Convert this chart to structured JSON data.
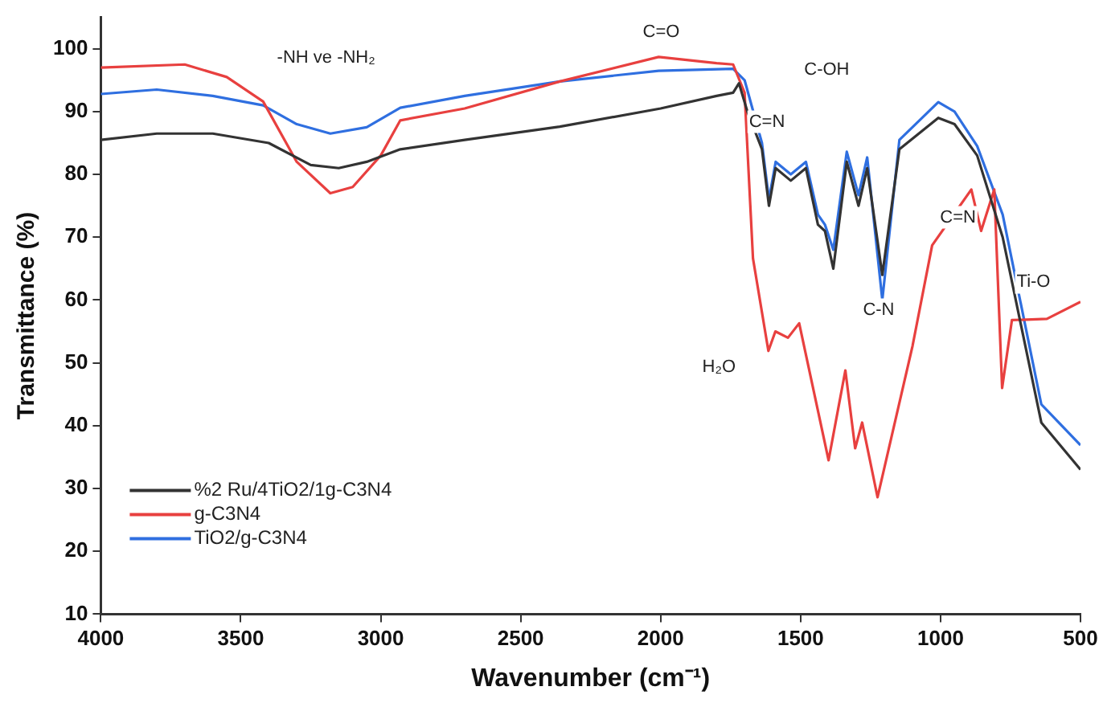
{
  "chart_data": {
    "type": "line",
    "xlabel": "Wavenumber (cm⁻¹)",
    "ylabel": "Transmittance (%)",
    "xlim": [
      4000,
      500
    ],
    "xticks": [
      4000,
      3500,
      3000,
      2500,
      2000,
      1500,
      1000,
      500
    ],
    "ylim": [
      10,
      105
    ],
    "yticks": [
      10,
      20,
      30,
      40,
      50,
      60,
      70,
      80,
      90,
      100
    ],
    "grid": false,
    "legend": "bottom left",
    "marker": "none",
    "line_style": "solid",
    "series": [
      {
        "name": "%2 Ru/4TiO2/1g-C3N4",
        "color": "#333333",
        "x": [
          4000,
          3800,
          3600,
          3400,
          3250,
          3150,
          3050,
          2930,
          2700,
          2360,
          2000,
          1800,
          1741,
          1720,
          1690,
          1638,
          1613,
          1589,
          1535,
          1481,
          1438,
          1413,
          1383,
          1335,
          1293,
          1262,
          1208,
          1147,
          1008,
          950,
          869,
          778,
          640,
          500
        ],
        "values": [
          85.5,
          86.5,
          86.5,
          85,
          81.5,
          81,
          82,
          84,
          85.5,
          87.6,
          90.5,
          92.5,
          93,
          94.5,
          90,
          84,
          75,
          81,
          79,
          81,
          72,
          71,
          65,
          82,
          75,
          81,
          64,
          84,
          89,
          88,
          83,
          70,
          40.5,
          33
        ]
      },
      {
        "name": "g-C3N4",
        "color": "#e8403f",
        "x": [
          4000,
          3700,
          3550,
          3420,
          3300,
          3180,
          3100,
          3000,
          2930,
          2700,
          2360,
          2007,
          1800,
          1741,
          1700,
          1670,
          1615,
          1590,
          1545,
          1505,
          1400,
          1340,
          1305,
          1280,
          1225,
          1100,
          1030,
          890,
          855,
          808,
          780,
          745,
          620,
          500
        ],
        "values": [
          97,
          97.5,
          95.5,
          91.6,
          82,
          77,
          78,
          83,
          88.6,
          90.5,
          94.8,
          98.7,
          97.7,
          97.5,
          93,
          66.6,
          51.9,
          55,
          54,
          56.3,
          34.5,
          48.8,
          36.4,
          40.5,
          28.6,
          52.7,
          68.7,
          77.6,
          71,
          77.6,
          46,
          56.8,
          57,
          59.7
        ]
      },
      {
        "name": "TiO2/g-C3N4",
        "color": "#2f6fe0",
        "x": [
          4000,
          3800,
          3600,
          3420,
          3300,
          3180,
          3050,
          2930,
          2700,
          2360,
          2007,
          1741,
          1700,
          1638,
          1613,
          1589,
          1535,
          1481,
          1438,
          1413,
          1383,
          1335,
          1293,
          1262,
          1208,
          1147,
          1008,
          950,
          869,
          778,
          640,
          500
        ],
        "values": [
          92.8,
          93.5,
          92.5,
          91,
          88,
          86.5,
          87.5,
          90.6,
          92.5,
          94.8,
          96.5,
          96.8,
          95,
          85,
          76,
          82,
          80,
          82,
          73.6,
          72,
          68,
          83.6,
          76.7,
          82.7,
          60,
          85.5,
          91.5,
          90,
          84.5,
          73.6,
          43.4,
          36.9
        ]
      }
    ],
    "annotations": [
      "-NH ve -NH₂",
      "C=O",
      "C-OH",
      "C=N",
      "H₂O",
      "C-N",
      "C=N",
      "Ti-O"
    ]
  }
}
